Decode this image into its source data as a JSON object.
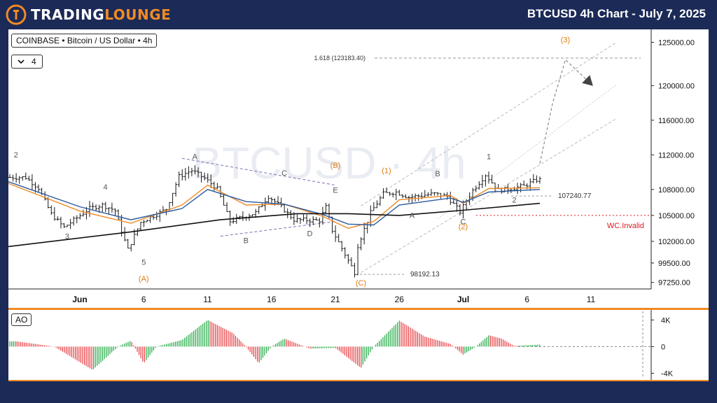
{
  "header": {
    "brand_part1": "TRADING",
    "brand_part2": "LOUNGE",
    "title": "BTCUSD 4h Chart - July 7, 2025"
  },
  "legend": {
    "symbol_line": "COINBASE • Bitcoin / US Dollar • 4h",
    "interval_count": "4"
  },
  "colors": {
    "background": "#1b2a57",
    "accent": "#f08a24",
    "wave_orange": "#e07b12",
    "ao_up": "#2fae4f",
    "ao_down": "#e8474c",
    "invalid_red": "#e0191e",
    "ema_orange": "#f08a24",
    "ema_blue": "#2c5a9e",
    "sma_black": "#111111"
  },
  "chart_data": [
    {
      "type": "candlestick",
      "title": "BTCUSD",
      "watermark": "BTCUSD · 4h",
      "y_axis_ticks": [
        125000,
        120000,
        116000,
        112000,
        108000,
        105000,
        102000,
        99500,
        97250
      ],
      "y_axis_labels": [
        "125000.00",
        "120000.00",
        "116000.00",
        "112000.00",
        "108000.00",
        "105000.00",
        "102000.00",
        "99500.00",
        "97250.00"
      ],
      "x_axis_ticks": [
        "Jun",
        "6",
        "11",
        "16",
        "21",
        "26",
        "Jul",
        "6",
        "11"
      ],
      "ylim": [
        96500,
        126500
      ],
      "price_path": [
        [
          "2025-05-28",
          109400
        ],
        [
          "2025-05-29",
          108200
        ],
        [
          "2025-05-30",
          105200
        ],
        [
          "2025-05-31",
          103600
        ],
        [
          "2025-06-02",
          105800
        ],
        [
          "2025-06-03",
          106200
        ],
        [
          "2025-06-04",
          105600
        ],
        [
          "2025-06-05",
          101000
        ],
        [
          "2025-06-06",
          104200
        ],
        [
          "2025-06-08",
          105700
        ],
        [
          "2025-06-09",
          109500
        ],
        [
          "2025-06-10",
          110200
        ],
        [
          "2025-06-11",
          109300
        ],
        [
          "2025-06-12",
          108100
        ],
        [
          "2025-06-13",
          104300
        ],
        [
          "2025-06-15",
          105300
        ],
        [
          "2025-06-16",
          107200
        ],
        [
          "2025-06-17",
          106000
        ],
        [
          "2025-06-18",
          104500
        ],
        [
          "2025-06-20",
          104400
        ],
        [
          "2025-06-20 12:00",
          106000
        ],
        [
          "2025-06-21",
          103300
        ],
        [
          "2025-06-22",
          100500
        ],
        [
          "2025-06-22 20:00",
          98192
        ],
        [
          "2025-06-23",
          101500
        ],
        [
          "2025-06-24",
          105300
        ],
        [
          "2025-06-25",
          107500
        ],
        [
          "2025-06-26",
          107700
        ],
        [
          "2025-06-27",
          107100
        ],
        [
          "2025-06-29",
          107500
        ],
        [
          "2025-06-30",
          107200
        ],
        [
          "2025-07-01",
          105400
        ],
        [
          "2025-07-02",
          107900
        ],
        [
          "2025-07-03",
          109700
        ],
        [
          "2025-07-04",
          107900
        ],
        [
          "2025-07-05",
          108100
        ],
        [
          "2025-07-06",
          108400
        ],
        [
          "2025-07-07",
          109100
        ]
      ],
      "moving_averages": [
        {
          "color": "#f08a24",
          "points": [
            [
              "2025-05-28",
              108700
            ],
            [
              "2025-06-01",
              105500
            ],
            [
              "2025-06-05",
              104100
            ],
            [
              "2025-06-09",
              106200
            ],
            [
              "2025-06-11",
              108500
            ],
            [
              "2025-06-14",
              106200
            ],
            [
              "2025-06-17",
              106300
            ],
            [
              "2025-06-20",
              104900
            ],
            [
              "2025-06-22",
              103500
            ],
            [
              "2025-06-24",
              104300
            ],
            [
              "2025-06-26",
              106800
            ],
            [
              "2025-06-30",
              107300
            ],
            [
              "2025-07-01",
              106400
            ],
            [
              "2025-07-03",
              108100
            ],
            [
              "2025-07-07",
              108200
            ]
          ]
        },
        {
          "color": "#2c5a9e",
          "points": [
            [
              "2025-05-28",
              108900
            ],
            [
              "2025-06-01",
              106000
            ],
            [
              "2025-06-05",
              104500
            ],
            [
              "2025-06-09",
              105800
            ],
            [
              "2025-06-11",
              108000
            ],
            [
              "2025-06-14",
              106600
            ],
            [
              "2025-06-17",
              106300
            ],
            [
              "2025-06-20",
              105100
            ],
            [
              "2025-06-22",
              104000
            ],
            [
              "2025-06-24",
              103900
            ],
            [
              "2025-06-26",
              106200
            ],
            [
              "2025-06-30",
              107000
            ],
            [
              "2025-07-01",
              106500
            ],
            [
              "2025-07-03",
              107700
            ],
            [
              "2025-07-07",
              108000
            ]
          ]
        },
        {
          "color": "#111111",
          "points": [
            [
              "2025-05-28",
              101400
            ],
            [
              "2025-06-05",
              103100
            ],
            [
              "2025-06-12",
              104500
            ],
            [
              "2025-06-18",
              105200
            ],
            [
              "2025-06-22",
              105200
            ],
            [
              "2025-06-26",
              105000
            ],
            [
              "2025-07-01",
              105600
            ],
            [
              "2025-07-07",
              106400
            ]
          ]
        }
      ],
      "levels": [
        {
          "label": "1.618 (123183.40)",
          "value": 123183.4,
          "style": "dashed-grey"
        },
        {
          "label": "107240.77",
          "value": 107240.77,
          "style": "dashed-grey"
        },
        {
          "label": "98192.13",
          "value": 98192.13,
          "style": "dashed-grey"
        },
        {
          "label": "WC.Invalid",
          "value": 105000,
          "style": "dashed-red"
        }
      ],
      "wave_labels_grey": [
        {
          "text": "2",
          "x": "2025-05-27",
          "y": 111700
        },
        {
          "text": "4",
          "x": "2025-06-03",
          "y": 108000
        },
        {
          "text": "3",
          "x": "2025-05-31",
          "y": 102300
        },
        {
          "text": "5",
          "x": "2025-06-06",
          "y": 99300
        },
        {
          "text": "A",
          "x": "2025-06-10",
          "y": 111500
        },
        {
          "text": "B",
          "x": "2025-06-14",
          "y": 101800
        },
        {
          "text": "C",
          "x": "2025-06-17",
          "y": 109600
        },
        {
          "text": "D",
          "x": "2025-06-19",
          "y": 102600
        },
        {
          "text": "E",
          "x": "2025-06-21",
          "y": 107600
        },
        {
          "text": "A",
          "x": "2025-06-27",
          "y": 104700
        },
        {
          "text": "B",
          "x": "2025-06-29",
          "y": 109500
        },
        {
          "text": "C",
          "x": "2025-07-01",
          "y": 104000
        },
        {
          "text": "1",
          "x": "2025-07-03",
          "y": 111500
        },
        {
          "text": "2",
          "x": "2025-07-05",
          "y": 106500
        }
      ],
      "wave_labels_orange": [
        {
          "text": "(A)",
          "x": "2025-06-06",
          "y": 97400
        },
        {
          "text": "(B)",
          "x": "2025-06-21",
          "y": 110500
        },
        {
          "text": "(C)",
          "x": "2025-06-23",
          "y": 96900
        },
        {
          "text": "(1)",
          "x": "2025-06-25",
          "y": 109900
        },
        {
          "text": "(2)",
          "x": "2025-07-01",
          "y": 103400
        },
        {
          "text": "(3)",
          "x": "2025-07-09",
          "y": 125000
        }
      ],
      "annotation_lines": [
        {
          "style": "dashed-purple",
          "points": [
            [
              "2025-06-09",
              111600
            ],
            [
              "2025-06-21",
              108500
            ]
          ]
        },
        {
          "style": "dashed-purple",
          "points": [
            [
              "2025-06-12",
              102600
            ],
            [
              "2025-06-21",
              104300
            ]
          ]
        },
        {
          "style": "channel-upper",
          "points": [
            [
              "2025-06-23",
              106100
            ],
            [
              "2025-07-13",
              125000
            ]
          ]
        },
        {
          "style": "channel-lower",
          "points": [
            [
              "2025-06-23",
              98400
            ],
            [
              "2025-07-13",
              116200
            ]
          ]
        },
        {
          "style": "channel-mid",
          "points": [
            [
              "2025-06-29",
              104600
            ],
            [
              "2025-07-13",
              120100
            ]
          ]
        },
        {
          "style": "projection",
          "points": [
            [
              "2025-07-07",
              111000
            ],
            [
              "2025-07-08",
              118000
            ],
            [
              "2025-07-09",
              123000
            ],
            [
              "2025-07-11",
              120200
            ]
          ]
        }
      ]
    },
    {
      "type": "bar",
      "title": "AO",
      "y_axis_labels": [
        "4K",
        "0",
        "-4K"
      ],
      "y_axis_ticks": [
        4000,
        0,
        -4000
      ],
      "ylim": [
        -5000,
        5500
      ],
      "ao_path": [
        [
          "2025-05-27",
          800
        ],
        [
          "2025-05-30",
          0
        ],
        [
          "2025-06-02",
          -3500
        ],
        [
          "2025-06-04",
          0
        ],
        [
          "2025-06-05",
          900
        ],
        [
          "2025-06-06",
          -2500
        ],
        [
          "2025-06-07",
          0
        ],
        [
          "2025-06-09",
          1000
        ],
        [
          "2025-06-11",
          4000
        ],
        [
          "2025-06-13",
          2000
        ],
        [
          "2025-06-14",
          0
        ],
        [
          "2025-06-15",
          -2500
        ],
        [
          "2025-06-16",
          0
        ],
        [
          "2025-06-17",
          1200
        ],
        [
          "2025-06-19",
          -300
        ],
        [
          "2025-06-21",
          -200
        ],
        [
          "2025-06-23",
          -3200
        ],
        [
          "2025-06-24",
          0
        ],
        [
          "2025-06-26",
          3900
        ],
        [
          "2025-06-28",
          1500
        ],
        [
          "2025-06-30",
          400
        ],
        [
          "2025-07-01",
          -1200
        ],
        [
          "2025-07-02",
          0
        ],
        [
          "2025-07-03",
          1700
        ],
        [
          "2025-07-04",
          1200
        ],
        [
          "2025-07-05",
          100
        ],
        [
          "2025-07-07",
          300
        ]
      ]
    }
  ]
}
